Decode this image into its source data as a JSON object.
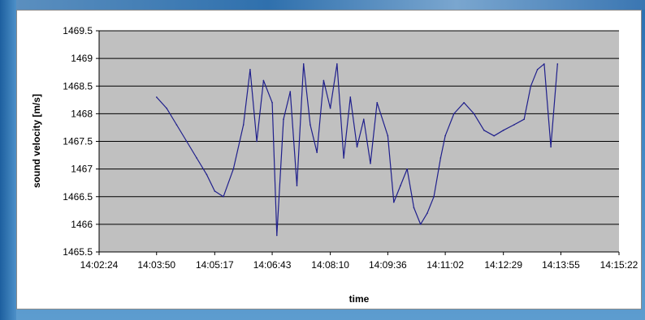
{
  "chart_data": {
    "type": "line",
    "title": "",
    "xlabel": "time",
    "ylabel": "sound velocity [m/s]",
    "ylim": [
      1465.5,
      1469.5
    ],
    "xlim": [
      "14:02:24",
      "14:15:22"
    ],
    "y_ticks": [
      "1465.5",
      "1466",
      "1466.5",
      "1467",
      "1467.5",
      "1468",
      "1468.5",
      "1469",
      "1469.5"
    ],
    "x_ticks": [
      "14:02:24",
      "14:03:50",
      "14:05:17",
      "14:06:43",
      "14:08:10",
      "14:09:36",
      "14:11:02",
      "14:12:29",
      "14:13:55",
      "14:15:22"
    ],
    "grid": true,
    "legend": "none",
    "colors": {
      "line": "#1f1f8c",
      "plot_bg": "#c0c0c0",
      "grid": "#000000"
    },
    "series": [
      {
        "x": [
          "14:03:50",
          "14:04:05",
          "14:04:20",
          "14:04:35",
          "14:04:50",
          "14:05:05",
          "14:05:17",
          "14:05:30",
          "14:05:45",
          "14:06:00",
          "14:06:10",
          "14:06:20",
          "14:06:30",
          "14:06:43",
          "14:06:50",
          "14:07:00",
          "14:07:10",
          "14:07:20",
          "14:07:30",
          "14:07:40",
          "14:07:50",
          "14:08:00",
          "14:08:10",
          "14:08:20",
          "14:08:30",
          "14:08:40",
          "14:08:50",
          "14:09:00",
          "14:09:10",
          "14:09:20",
          "14:09:36",
          "14:09:45",
          "14:09:55",
          "14:10:05",
          "14:10:15",
          "14:10:25",
          "14:10:35",
          "14:10:45",
          "14:10:55",
          "14:11:02",
          "14:11:15",
          "14:11:30",
          "14:11:45",
          "14:12:00",
          "14:12:15",
          "14:12:29",
          "14:12:45",
          "14:13:00",
          "14:13:10",
          "14:13:20",
          "14:13:30",
          "14:13:40",
          "14:13:50"
        ],
        "values": [
          1468.3,
          1468.1,
          1467.8,
          1467.5,
          1467.2,
          1466.9,
          1466.6,
          1466.5,
          1467.0,
          1467.8,
          1468.8,
          1467.5,
          1468.6,
          1468.2,
          1465.8,
          1467.9,
          1468.4,
          1466.7,
          1468.9,
          1467.8,
          1467.3,
          1468.6,
          1468.1,
          1468.9,
          1467.2,
          1468.3,
          1467.4,
          1467.9,
          1467.1,
          1468.2,
          1467.6,
          1466.4,
          1466.7,
          1467.0,
          1466.3,
          1466.0,
          1466.2,
          1466.5,
          1467.2,
          1467.6,
          1468.0,
          1468.2,
          1468.0,
          1467.7,
          1467.6,
          1467.7,
          1467.8,
          1467.9,
          1468.5,
          1468.8,
          1468.9,
          1467.4,
          1468.9
        ]
      }
    ]
  }
}
